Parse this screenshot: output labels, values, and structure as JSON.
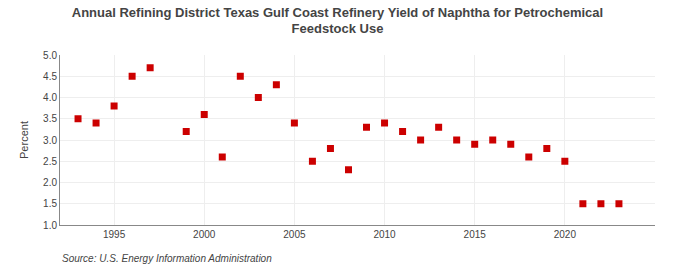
{
  "chart_data": {
    "type": "scatter",
    "title": "Annual Refining District Texas Gulf Coast Refinery Yield of Naphtha for Petrochemical\nFeedstock Use",
    "ylabel": "Percent",
    "annotations": [
      "Source: U.S. Energy Information Administration"
    ],
    "x": [
      1993,
      1994,
      1995,
      1996,
      1997,
      1999,
      2000,
      2001,
      2002,
      2003,
      2004,
      2005,
      2006,
      2007,
      2008,
      2009,
      2010,
      2011,
      2012,
      2013,
      2014,
      2015,
      2016,
      2017,
      2018,
      2019,
      2020,
      2021,
      2022,
      2023
    ],
    "values": [
      3.5,
      3.4,
      3.8,
      4.5,
      4.7,
      3.2,
      3.6,
      2.6,
      4.5,
      4.0,
      4.3,
      3.4,
      2.5,
      2.8,
      2.3,
      3.3,
      3.4,
      3.2,
      3.0,
      3.3,
      3.0,
      2.9,
      3.0,
      2.9,
      2.6,
      2.8,
      2.5,
      1.5,
      1.5,
      1.5
    ],
    "color": "#cc0000",
    "marker": "square",
    "xlim": [
      1992,
      2025
    ],
    "xticks": [
      1995,
      2000,
      2005,
      2010,
      2015,
      2020
    ],
    "ylim": [
      1.0,
      5.0
    ],
    "yticks": [
      {
        "value": 1.0,
        "label": "1.0"
      },
      1.5,
      {
        "value": 2.0,
        "label": "2.0"
      },
      2.5,
      {
        "value": 3.0,
        "label": "3.0"
      },
      3.5,
      {
        "value": 4.0,
        "label": "4.0"
      },
      4.5,
      {
        "value": 5.0,
        "label": "5.0"
      }
    ],
    "grid": true
  }
}
